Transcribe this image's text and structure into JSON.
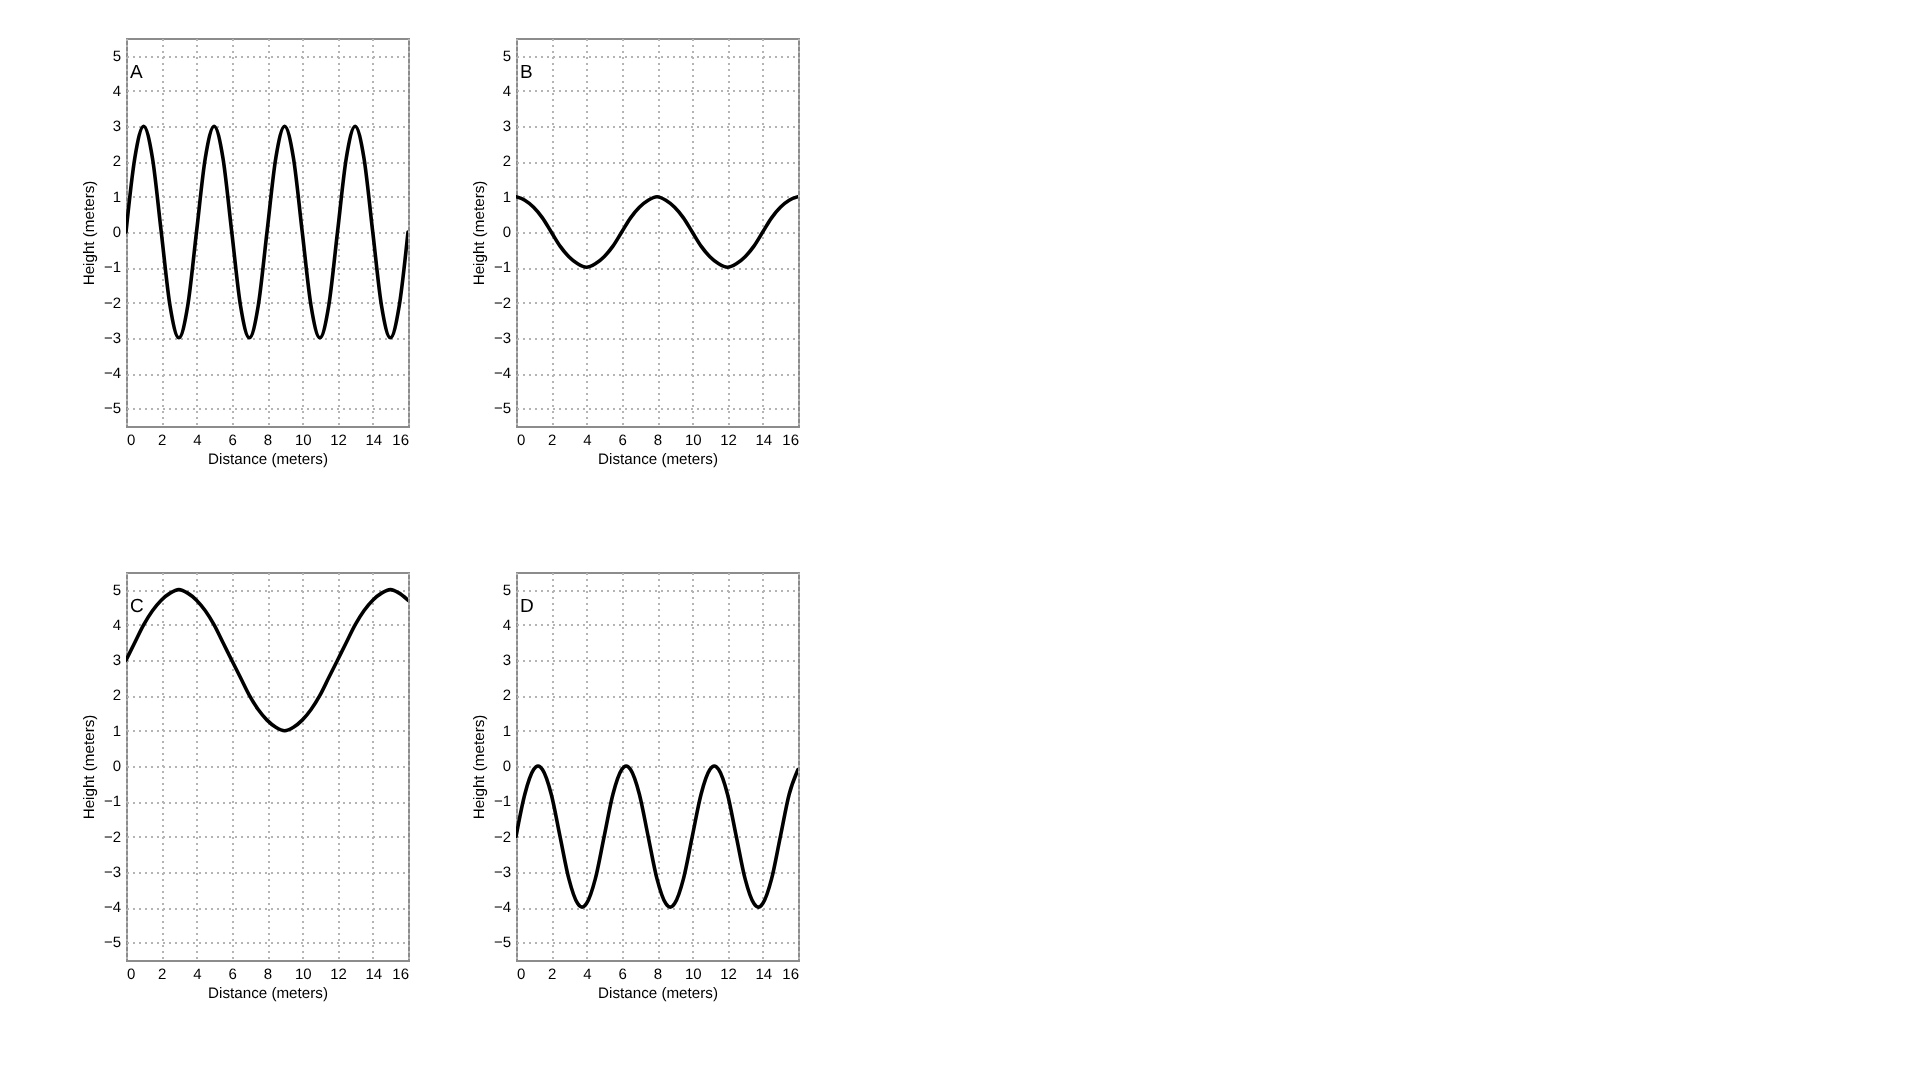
{
  "chart_data": [
    {
      "type": "line",
      "title": "A",
      "xlabel": "Distance (meters)",
      "ylabel": "Height (meters)",
      "color": "#000000",
      "grid": true,
      "xlim": [
        0,
        16
      ],
      "ylim": [
        -5.5,
        5.5
      ],
      "xticks": [
        0,
        2,
        4,
        6,
        8,
        10,
        12,
        14,
        16
      ],
      "yticks": [
        -5,
        -4,
        -3,
        -2,
        -1,
        0,
        1,
        2,
        3,
        4,
        5
      ],
      "x": [
        0,
        0.5,
        1,
        1.5,
        2,
        2.5,
        3,
        3.5,
        4,
        4.5,
        5,
        5.5,
        6,
        6.5,
        7,
        7.5,
        8,
        8.5,
        9,
        9.5,
        10,
        10.5,
        11,
        11.5,
        12,
        12.5,
        13,
        13.5,
        14,
        14.5,
        15,
        15.5,
        16
      ],
      "values": [
        0,
        2.1,
        3,
        2.1,
        0,
        -2.1,
        -3,
        -2.1,
        0,
        2.1,
        3,
        2.1,
        0,
        -2.1,
        -3,
        -2.1,
        0,
        2.1,
        3,
        2.1,
        0,
        -2.1,
        -3,
        -2.1,
        0,
        2.1,
        3,
        2.1,
        0,
        -2.1,
        -3,
        -2.1,
        0
      ]
    },
    {
      "type": "line",
      "title": "B",
      "xlabel": "Distance (meters)",
      "ylabel": "Height (meters)",
      "color": "#000000",
      "grid": true,
      "xlim": [
        0,
        16
      ],
      "ylim": [
        -5.5,
        5.5
      ],
      "xticks": [
        0,
        2,
        4,
        6,
        8,
        10,
        12,
        14,
        16
      ],
      "yticks": [
        -5,
        -4,
        -3,
        -2,
        -1,
        0,
        1,
        2,
        3,
        4,
        5
      ],
      "x": [
        0,
        0.5,
        1,
        1.5,
        2,
        2.5,
        3,
        3.5,
        4,
        4.5,
        5,
        5.5,
        6,
        6.5,
        7,
        7.5,
        8,
        8.5,
        9,
        9.5,
        10,
        10.5,
        11,
        11.5,
        12,
        12.5,
        13,
        13.5,
        14,
        14.5,
        15,
        15.5,
        16
      ],
      "values": [
        1,
        0.9,
        0.7,
        0.4,
        0,
        -0.4,
        -0.7,
        -0.9,
        -1,
        -0.9,
        -0.7,
        -0.4,
        0,
        0.4,
        0.7,
        0.9,
        1,
        0.9,
        0.7,
        0.4,
        0,
        -0.4,
        -0.7,
        -0.9,
        -1,
        -0.9,
        -0.7,
        -0.4,
        0,
        0.4,
        0.7,
        0.9,
        1
      ]
    },
    {
      "type": "line",
      "title": "C",
      "xlabel": "Distance (meters)",
      "ylabel": "Height (meters)",
      "color": "#000000",
      "grid": true,
      "xlim": [
        0,
        16
      ],
      "ylim": [
        -5.5,
        5.5
      ],
      "xticks": [
        0,
        2,
        4,
        6,
        8,
        10,
        12,
        14,
        16
      ],
      "yticks": [
        -5,
        -4,
        -3,
        -2,
        -1,
        0,
        1,
        2,
        3,
        4,
        5
      ],
      "x": [
        0,
        0.5,
        1,
        1.5,
        2,
        2.5,
        3,
        3.5,
        4,
        4.5,
        5,
        5.5,
        6,
        6.5,
        7,
        7.5,
        8,
        8.5,
        9,
        9.5,
        10,
        10.5,
        11,
        11.5,
        12,
        12.5,
        13,
        13.5,
        14,
        14.5,
        15,
        15.5,
        16
      ],
      "values": [
        3,
        3.5,
        4,
        4.4,
        4.7,
        4.9,
        5,
        4.9,
        4.7,
        4.4,
        4,
        3.5,
        3,
        2.5,
        2,
        1.6,
        1.3,
        1.1,
        1,
        1.1,
        1.3,
        1.6,
        2,
        2.5,
        3,
        3.5,
        4,
        4.4,
        4.7,
        4.9,
        5,
        4.9,
        4.7
      ]
    },
    {
      "type": "line",
      "title": "D",
      "xlabel": "Distance (meters)",
      "ylabel": "Height (meters)",
      "color": "#000000",
      "grid": true,
      "xlim": [
        0,
        16
      ],
      "ylim": [
        -5.5,
        5.5
      ],
      "xticks": [
        0,
        2,
        4,
        6,
        8,
        10,
        12,
        14,
        16
      ],
      "yticks": [
        -5,
        -4,
        -3,
        -2,
        -1,
        0,
        1,
        2,
        3,
        4,
        5
      ],
      "x": [
        0,
        0.5,
        1,
        1.25,
        1.5,
        2,
        2.5,
        3,
        3.5,
        3.75,
        4,
        4.5,
        5,
        5.5,
        6,
        6.25,
        6.5,
        7,
        7.5,
        8,
        8.5,
        8.75,
        9,
        9.5,
        10,
        10.5,
        11,
        11.25,
        11.5,
        12,
        12.5,
        13,
        13.5,
        13.75,
        14,
        14.5,
        15,
        15.5,
        16
      ],
      "values": [
        -2,
        -0.8,
        -0.1,
        0,
        -0.1,
        -0.8,
        -2,
        -3.2,
        -3.9,
        -4,
        -3.9,
        -3.2,
        -2,
        -0.8,
        -0.1,
        0,
        -0.1,
        -0.8,
        -2,
        -3.2,
        -3.9,
        -4,
        -3.9,
        -3.2,
        -2,
        -0.8,
        -0.1,
        0,
        -0.1,
        -0.8,
        -2,
        -3.2,
        -3.9,
        -4,
        -3.9,
        -3.2,
        -2,
        -0.8,
        -0.1
      ]
    }
  ]
}
